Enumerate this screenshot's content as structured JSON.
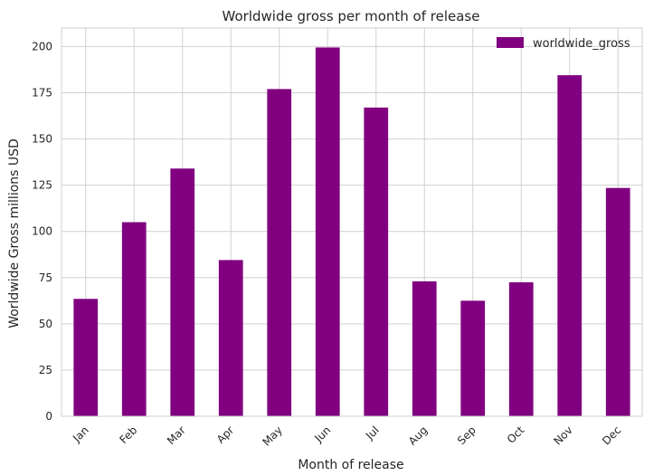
{
  "chart_data": {
    "type": "bar",
    "title": "Worldwide gross per month of release",
    "xlabel": "Month of release",
    "ylabel": "Worldwide Gross millions USD",
    "categories": [
      "Jan",
      "Feb",
      "Mar",
      "Apr",
      "May",
      "Jun",
      "Jul",
      "Aug",
      "Sep",
      "Oct",
      "Nov",
      "Dec"
    ],
    "series": [
      {
        "name": "worldwide_gross",
        "color": "#800080",
        "values": [
          63.5,
          105,
          134,
          84.5,
          177,
          199.5,
          167,
          73,
          62.5,
          72.5,
          184.5,
          123.5
        ]
      }
    ],
    "ylim": [
      0,
      210
    ],
    "yticks": [
      0,
      25,
      50,
      75,
      100,
      125,
      150,
      175,
      200
    ],
    "grid": true,
    "legend_position": "top-right",
    "xtick_rotation": -45
  }
}
